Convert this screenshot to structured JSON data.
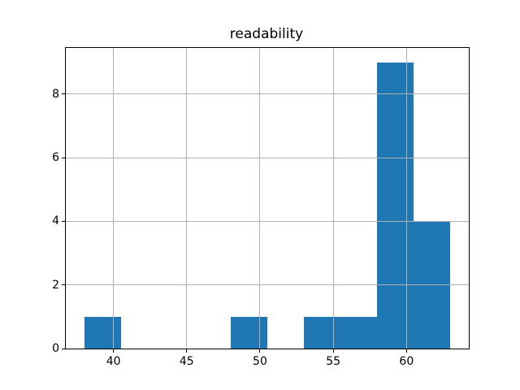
{
  "figure": {
    "background_color": "#ffffff",
    "text_color": "#000000",
    "spine_color": "#000000"
  },
  "chart_data": {
    "type": "bar",
    "subtype": "histogram",
    "title": "readability",
    "xlabel": "",
    "ylabel": "",
    "bin_edges": [
      38,
      40.5,
      43,
      45.5,
      48,
      50.5,
      53,
      55.5,
      58,
      60.5,
      63
    ],
    "counts": [
      1,
      0,
      0,
      0,
      1,
      0,
      1,
      1,
      9,
      4
    ],
    "xlim": [
      36.75,
      64.25
    ],
    "ylim": [
      0,
      9.45
    ],
    "xticks": [
      40,
      45,
      50,
      55,
      60
    ],
    "yticks": [
      0,
      2,
      4,
      6,
      8
    ],
    "bar_color": "#1f77b4",
    "grid": true,
    "grid_color": "#b0b0b0",
    "grid_above_bars": true,
    "legend": null
  }
}
